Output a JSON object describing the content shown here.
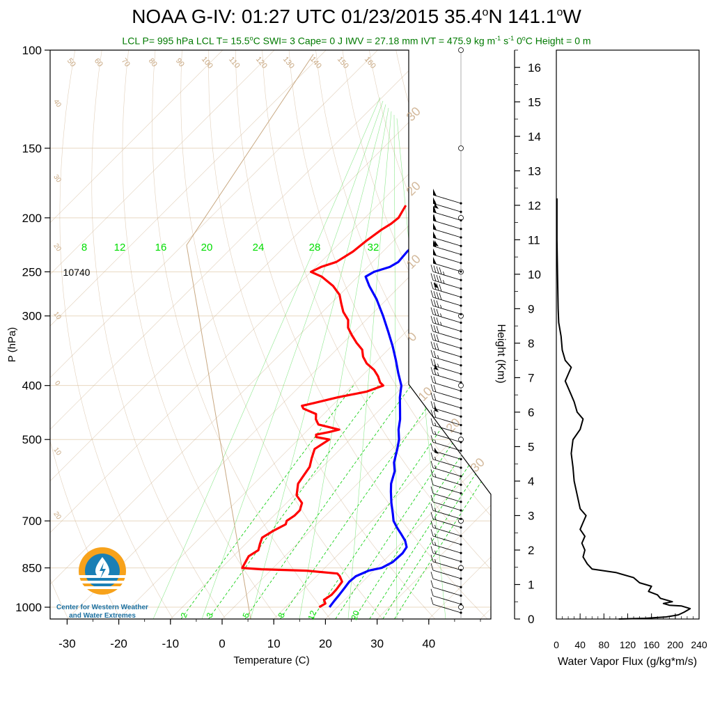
{
  "title_parts": {
    "pre": "NOAA G-IV: 01:27 UTC 01/23/2015  35.4",
    "o1": "o",
    "mid": "N 141.1",
    "o2": "o",
    "post": "W"
  },
  "subtitle_parts": {
    "a": "LCL P= 995 hPa  LCL T= 15.5",
    "deg": "o",
    "b": "C  SWI= 3  Cape= 0 J  IWV = 27.18 mm  IVT = 475.9 kg m",
    "sup1": "-1",
    "c": " s",
    "sup2": "-1",
    "d": "  0",
    "deg2": "o",
    "e": "C Height = 0 m"
  },
  "colors": {
    "temperature": "#ff0000",
    "dewpoint": "#0000ff",
    "mixing_ratio": "#00cc00",
    "adiabat": "#c8a882",
    "isobar": "#e8d8c0",
    "subtitle": "#007a00",
    "logo_orange": "#f7a21b",
    "logo_blue": "#1a7fb5"
  },
  "chart_data": [
    {
      "type": "line",
      "name": "skew-T log-P sounding",
      "xlabel": "Temperature (C)",
      "ylabel": "P (hPa)",
      "x_ticks": [
        "-30",
        "-20",
        "-10",
        "0",
        "10",
        "20",
        "30",
        "40"
      ],
      "y_ticks": [
        "100",
        "150",
        "200",
        "250",
        "300",
        "400",
        "500",
        "700",
        "850",
        "1000"
      ],
      "height_label_250": "10740",
      "mixing_ratio_top_labels": [
        "8",
        "12",
        "16",
        "20",
        "24",
        "28",
        "32"
      ],
      "mixing_ratio_bottom_labels": [
        "2",
        "3",
        "5",
        "8",
        "12",
        "20"
      ],
      "adiabat_labels": [
        "50",
        "60",
        "70",
        "80",
        "90",
        "100",
        "110",
        "120",
        "130",
        "140",
        "150",
        "160"
      ],
      "left_isotherm_labels": [
        "40",
        "30",
        "20",
        "10",
        "0",
        "10",
        "20"
      ],
      "right_isotherm_labels": [
        "30",
        "20",
        "10",
        "0",
        "10",
        "20",
        "30"
      ],
      "ylim": [
        1050,
        100
      ],
      "xlim": [
        -35,
        50
      ],
      "skewed": true,
      "series": [
        {
          "name": "Temperature",
          "color": "#0000ff",
          "points": [
            [
              1000,
              18.5
            ],
            [
              975,
              18.2
            ],
            [
              950,
              18.0
            ],
            [
              925,
              17.7
            ],
            [
              900,
              17.4
            ],
            [
              880,
              17.6
            ],
            [
              860,
              19.0
            ],
            [
              850,
              21.0
            ],
            [
              830,
              22.0
            ],
            [
              800,
              22.2
            ],
            [
              780,
              21.8
            ],
            [
              760,
              20.3
            ],
            [
              740,
              18.3
            ],
            [
              720,
              16.2
            ],
            [
              700,
              14.2
            ],
            [
              680,
              12.7
            ],
            [
              650,
              10.3
            ],
            [
              620,
              8.0
            ],
            [
              600,
              6.5
            ],
            [
              570,
              4.8
            ],
            [
              550,
              3.0
            ],
            [
              520,
              1.0
            ],
            [
              500,
              -0.5
            ],
            [
              480,
              -2.5
            ],
            [
              460,
              -4.2
            ],
            [
              440,
              -6.3
            ],
            [
              420,
              -8.5
            ],
            [
              400,
              -10.5
            ],
            [
              380,
              -13.5
            ],
            [
              360,
              -16.5
            ],
            [
              340,
              -19.8
            ],
            [
              320,
              -23.5
            ],
            [
              300,
              -27.5
            ],
            [
              280,
              -32.0
            ],
            [
              265,
              -36.0
            ],
            [
              255,
              -38.5
            ],
            [
              250,
              -37.8
            ],
            [
              245,
              -35.7
            ],
            [
              240,
              -35.0
            ],
            [
              230,
              -35.3
            ],
            [
              220,
              -35.2
            ],
            [
              210,
              -34.0
            ],
            [
              205,
              -33.3
            ],
            [
              200,
              -34.0
            ],
            [
              195,
              -35.3
            ],
            [
              190,
              -36.0
            ]
          ]
        },
        {
          "name": "Dewpoint",
          "color": "#ff0000",
          "points": [
            [
              1000,
              16.5
            ],
            [
              985,
              17.0
            ],
            [
              970,
              16.0
            ],
            [
              950,
              16.5
            ],
            [
              930,
              16.4
            ],
            [
              900,
              16.0
            ],
            [
              880,
              14.5
            ],
            [
              870,
              13.5
            ],
            [
              860,
              7.0
            ],
            [
              855,
              -2.0
            ],
            [
              850,
              -6.0
            ],
            [
              830,
              -6.5
            ],
            [
              810,
              -7.0
            ],
            [
              790,
              -6.3
            ],
            [
              770,
              -7.2
            ],
            [
              750,
              -8.0
            ],
            [
              730,
              -7.2
            ],
            [
              710,
              -6.0
            ],
            [
              700,
              -6.5
            ],
            [
              685,
              -6.0
            ],
            [
              670,
              -6.0
            ],
            [
              650,
              -7.0
            ],
            [
              630,
              -9.5
            ],
            [
              600,
              -11.5
            ],
            [
              580,
              -12.0
            ],
            [
              560,
              -12.5
            ],
            [
              540,
              -13.8
            ],
            [
              520,
              -15.0
            ],
            [
              500,
              -14.0
            ],
            [
              495,
              -17.0
            ],
            [
              490,
              -17.5
            ],
            [
              485,
              -15.5
            ],
            [
              480,
              -14.0
            ],
            [
              470,
              -19.0
            ],
            [
              460,
              -20.5
            ],
            [
              450,
              -21.5
            ],
            [
              440,
              -25.0
            ],
            [
              435,
              -25.8
            ],
            [
              430,
              -24.0
            ],
            [
              420,
              -20.5
            ],
            [
              410,
              -16.0
            ],
            [
              400,
              -14.0
            ],
            [
              395,
              -15.2
            ],
            [
              385,
              -16.8
            ],
            [
              375,
              -18.8
            ],
            [
              365,
              -21.5
            ],
            [
              355,
              -23.5
            ],
            [
              345,
              -25.0
            ],
            [
              335,
              -27.5
            ],
            [
              325,
              -29.8
            ],
            [
              315,
              -32.0
            ],
            [
              305,
              -33.5
            ],
            [
              295,
              -36.0
            ],
            [
              285,
              -38.0
            ],
            [
              275,
              -40.0
            ],
            [
              265,
              -43.0
            ],
            [
              255,
              -47.0
            ],
            [
              250,
              -50.0
            ],
            [
              245,
              -49.0
            ],
            [
              240,
              -47.0
            ],
            [
              230,
              -45.8
            ],
            [
              220,
              -45.3
            ],
            [
              210,
              -44.5
            ],
            [
              205,
              -43.8
            ],
            [
              200,
              -43.5
            ],
            [
              195,
              -44.0
            ],
            [
              190,
              -44.5
            ]
          ]
        }
      ],
      "wind_barbs_speed_kt": [
        50,
        55,
        60,
        60,
        55,
        55,
        55,
        50,
        50,
        45,
        45,
        40,
        40,
        35,
        35,
        35,
        30,
        30,
        30,
        25,
        25,
        25,
        20,
        20,
        20,
        20,
        20,
        15,
        15,
        15,
        15,
        15,
        15,
        15,
        10,
        10,
        10,
        15,
        15,
        15,
        15,
        15,
        15,
        15,
        10,
        10,
        10,
        10,
        10
      ]
    },
    {
      "type": "line",
      "name": "Water vapor flux profile",
      "xlabel": "Water Vapor Flux (g/kg*m/s)",
      "ylabel": "Height (Km)",
      "x_ticks": [
        "0",
        "40",
        "80",
        "120",
        "160",
        "200",
        "240"
      ],
      "y_ticks": [
        "0",
        "1",
        "2",
        "3",
        "4",
        "5",
        "6",
        "7",
        "8",
        "9",
        "10",
        "11",
        "12",
        "13",
        "14",
        "15",
        "16"
      ],
      "xlim": [
        0,
        240
      ],
      "ylim": [
        0,
        16.5
      ],
      "color": "#000000",
      "points": [
        [
          105,
          0.0
        ],
        [
          150,
          0.02
        ],
        [
          185,
          0.06
        ],
        [
          205,
          0.12
        ],
        [
          215,
          0.2
        ],
        [
          225,
          0.3
        ],
        [
          210,
          0.38
        ],
        [
          190,
          0.4
        ],
        [
          180,
          0.45
        ],
        [
          195,
          0.5
        ],
        [
          175,
          0.6
        ],
        [
          170,
          0.7
        ],
        [
          155,
          0.8
        ],
        [
          160,
          0.95
        ],
        [
          140,
          1.05
        ],
        [
          130,
          1.2
        ],
        [
          100,
          1.35
        ],
        [
          60,
          1.45
        ],
        [
          52,
          1.6
        ],
        [
          45,
          1.8
        ],
        [
          48,
          2.0
        ],
        [
          43,
          2.2
        ],
        [
          48,
          2.4
        ],
        [
          40,
          2.6
        ],
        [
          45,
          2.8
        ],
        [
          50,
          3.0
        ],
        [
          40,
          3.2
        ],
        [
          35,
          3.6
        ],
        [
          30,
          4.0
        ],
        [
          28,
          4.4
        ],
        [
          25,
          4.8
        ],
        [
          28,
          5.2
        ],
        [
          40,
          5.5
        ],
        [
          45,
          5.8
        ],
        [
          35,
          6.0
        ],
        [
          30,
          6.3
        ],
        [
          25,
          6.5
        ],
        [
          20,
          6.7
        ],
        [
          15,
          6.9
        ],
        [
          20,
          7.1
        ],
        [
          25,
          7.3
        ],
        [
          15,
          7.5
        ],
        [
          10,
          7.8
        ],
        [
          8,
          8.2
        ],
        [
          4,
          8.6
        ],
        [
          3,
          9.0
        ],
        [
          2,
          10.0
        ],
        [
          1,
          11.0
        ],
        [
          1,
          12.0
        ],
        [
          1,
          12.2
        ]
      ]
    }
  ]
}
